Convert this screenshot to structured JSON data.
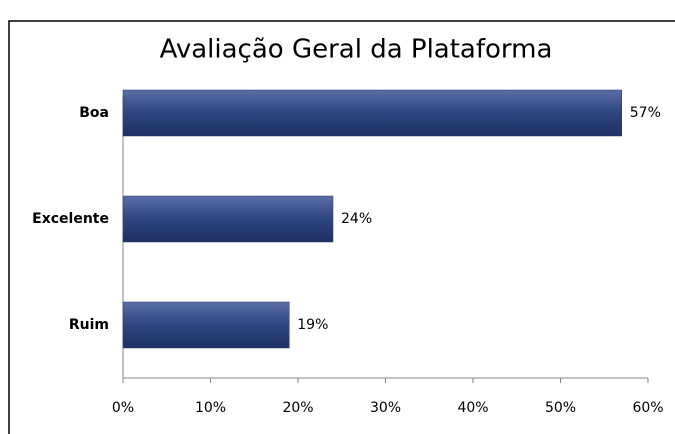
{
  "chart_data": {
    "type": "bar",
    "orientation": "horizontal",
    "title": "Avaliação Geral da Plataforma",
    "categories": [
      "Boa",
      "Excelente",
      "Ruim"
    ],
    "values": [
      57,
      24,
      19
    ],
    "value_labels": [
      "57%",
      "24%",
      "19%"
    ],
    "color": "#24396f",
    "xlim": [
      0,
      60
    ],
    "xticks": [
      {
        "value": 0,
        "label": "0%"
      },
      {
        "value": 10,
        "label": "10%"
      },
      {
        "value": 20,
        "label": "20%"
      },
      {
        "value": 30,
        "label": "30%"
      },
      {
        "value": 40,
        "label": "40%"
      },
      {
        "value": 50,
        "label": "50%"
      },
      {
        "value": 60,
        "label": "60%"
      }
    ],
    "grid": false
  }
}
